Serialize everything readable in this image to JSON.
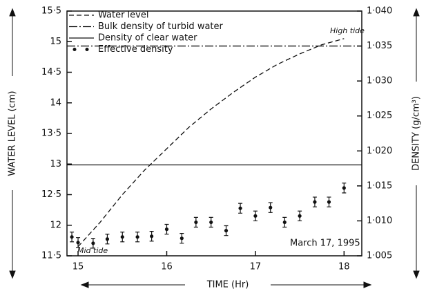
{
  "chart_data": {
    "type": "line",
    "xlabel": "TIME (Hr)",
    "ylabel": "WATER LEVEL (cm)",
    "y2label": "DENSITY (g/cm³)",
    "annotations": [
      "High tide",
      "Mid tide",
      "March 17, 1995"
    ],
    "xlim": [
      14.875,
      18.2
    ],
    "xticks": [
      15,
      16,
      17,
      18
    ],
    "ylim": [
      11.5,
      15.5
    ],
    "yticks": [
      {
        "value": 11.5,
        "label": "11·5"
      },
      12,
      {
        "value": 12.5,
        "label": "12·5"
      },
      13,
      {
        "value": 13.5,
        "label": "13·5"
      },
      14,
      {
        "value": 14.5,
        "label": "14·5"
      },
      15,
      {
        "value": 15.5,
        "label": "15·5"
      }
    ],
    "y2lim": [
      1.005,
      1.04
    ],
    "y2ticks": [
      {
        "value": 1.005,
        "label": "1·005"
      },
      {
        "value": 1.01,
        "label": "1·010"
      },
      {
        "value": 1.015,
        "label": "1·015"
      },
      {
        "value": 1.02,
        "label": "1·020"
      },
      {
        "value": 1.025,
        "label": "1·025"
      },
      {
        "value": 1.03,
        "label": "1·030"
      },
      {
        "value": 1.035,
        "label": "1·035"
      },
      {
        "value": 1.04,
        "label": "1·040"
      }
    ],
    "legend": "upper left",
    "series": [
      {
        "name": "Water level",
        "color": "#111111",
        "style": "dashed",
        "x": [
          15,
          15.25,
          15.5,
          15.75,
          16,
          16.25,
          16.5,
          16.75,
          17,
          17.25,
          17.5,
          17.75,
          18
        ],
        "values": [
          11.65,
          12.05,
          12.5,
          12.9,
          13.25,
          13.6,
          13.9,
          14.17,
          14.42,
          14.63,
          14.8,
          14.95,
          15.05
        ]
      },
      {
        "name": "Bulk density of turbid water",
        "color": "#111111",
        "style": "dashdot",
        "axis": "y2",
        "x": [
          14.875,
          18.2
        ],
        "values": [
          1.035,
          1.035
        ]
      },
      {
        "name": "Density of clear water",
        "color": "#111111",
        "style": "solid",
        "axis": "y2",
        "x": [
          14.875,
          18.2
        ],
        "values": [
          1.018,
          1.018
        ]
      },
      {
        "name": "Effective density",
        "color": "#111111",
        "style": "points",
        "axis": "y2",
        "x": [
          14.93,
          15.0,
          15.17,
          15.33,
          15.5,
          15.67,
          15.83,
          16.0,
          16.17,
          16.33,
          16.5,
          16.67,
          16.83,
          17.0,
          17.17,
          17.33,
          17.5,
          17.67,
          17.83,
          18.0
        ],
        "values": [
          1.0077,
          1.0069,
          1.0068,
          1.0074,
          1.0077,
          1.0077,
          1.0078,
          1.0088,
          1.0075,
          1.0098,
          1.0098,
          1.0086,
          1.0118,
          1.0107,
          1.0119,
          1.0098,
          1.0107,
          1.0127,
          1.0127,
          1.0147
        ],
        "errors": [
          0.0007,
          0.0007,
          0.0007,
          0.0007,
          0.0007,
          0.0007,
          0.0007,
          0.0007,
          0.0007,
          0.0007,
          0.0007,
          0.0007,
          0.0007,
          0.0007,
          0.0007,
          0.0007,
          0.0007,
          0.0007,
          0.0007,
          0.0007
        ]
      }
    ]
  }
}
